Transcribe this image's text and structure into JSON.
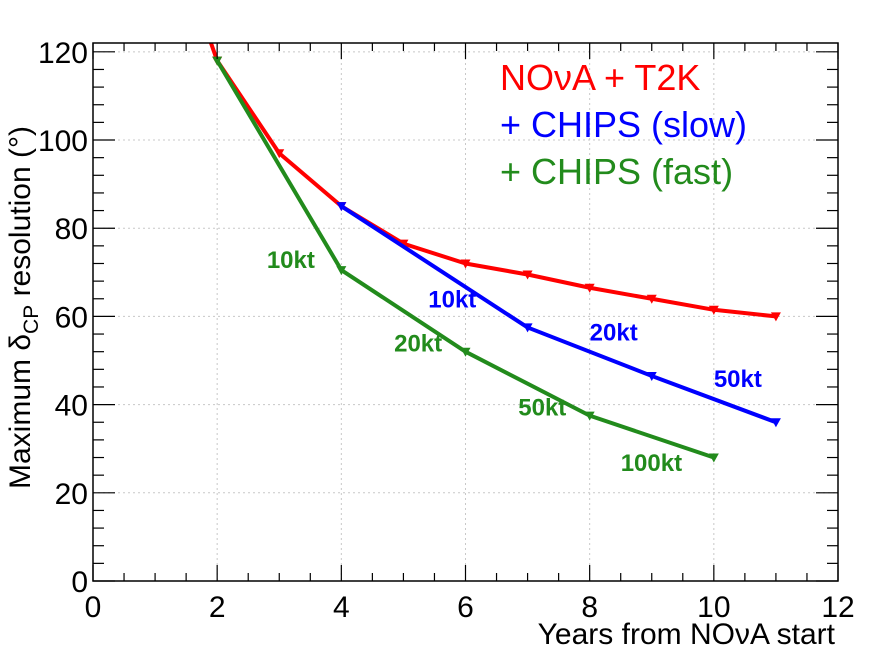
{
  "chart_data": {
    "type": "line",
    "title": "",
    "xlabel": "Years from NOνA start",
    "ylabel_prefix": "Maximum δ",
    "ylabel_subscript": "CP",
    "ylabel_suffix": " resolution (°)",
    "xlim": [
      0,
      12
    ],
    "ylim": [
      0,
      122
    ],
    "xticks": [
      0,
      2,
      4,
      6,
      8,
      10,
      12
    ],
    "yticks": [
      0,
      20,
      40,
      60,
      80,
      100,
      120
    ],
    "grid": true,
    "legend_position": "top-right",
    "series": [
      {
        "name": "NOνA + T2K",
        "color": "#ff0000",
        "x": [
          1.9,
          2,
          3,
          4,
          5,
          6,
          7,
          8,
          9,
          10,
          11
        ],
        "y": [
          122,
          118,
          97,
          85,
          76.5,
          72,
          69.5,
          66.5,
          64,
          61.5,
          60
        ],
        "markers": [
          2,
          3,
          4,
          5,
          6,
          7,
          8,
          9,
          10,
          11
        ]
      },
      {
        "name": "+ CHIPS (slow)",
        "color": "#0000ff",
        "x": [
          4,
          7,
          9,
          11
        ],
        "y": [
          85,
          57.5,
          46.5,
          36
        ],
        "markers": [
          4,
          7,
          9,
          11
        ]
      },
      {
        "name": "+ CHIPS (fast)",
        "color": "#228b1c",
        "x": [
          2,
          4,
          6,
          8,
          10
        ],
        "y": [
          118,
          70.5,
          52,
          37.5,
          28
        ],
        "markers": [
          2,
          4,
          6,
          8,
          10
        ]
      }
    ],
    "annotations": [
      {
        "text": "10kt",
        "series": 2,
        "x": 2.8,
        "y": 71
      },
      {
        "text": "20kt",
        "series": 2,
        "x": 4.85,
        "y": 52
      },
      {
        "text": "50kt",
        "series": 2,
        "x": 6.85,
        "y": 37.5
      },
      {
        "text": "100kt",
        "series": 2,
        "x": 8.5,
        "y": 25
      },
      {
        "text": "10kt",
        "series": 1,
        "x": 5.4,
        "y": 62
      },
      {
        "text": "20kt",
        "series": 1,
        "x": 8.0,
        "y": 54.5
      },
      {
        "text": "50kt",
        "series": 1,
        "x": 10.0,
        "y": 44
      }
    ]
  }
}
